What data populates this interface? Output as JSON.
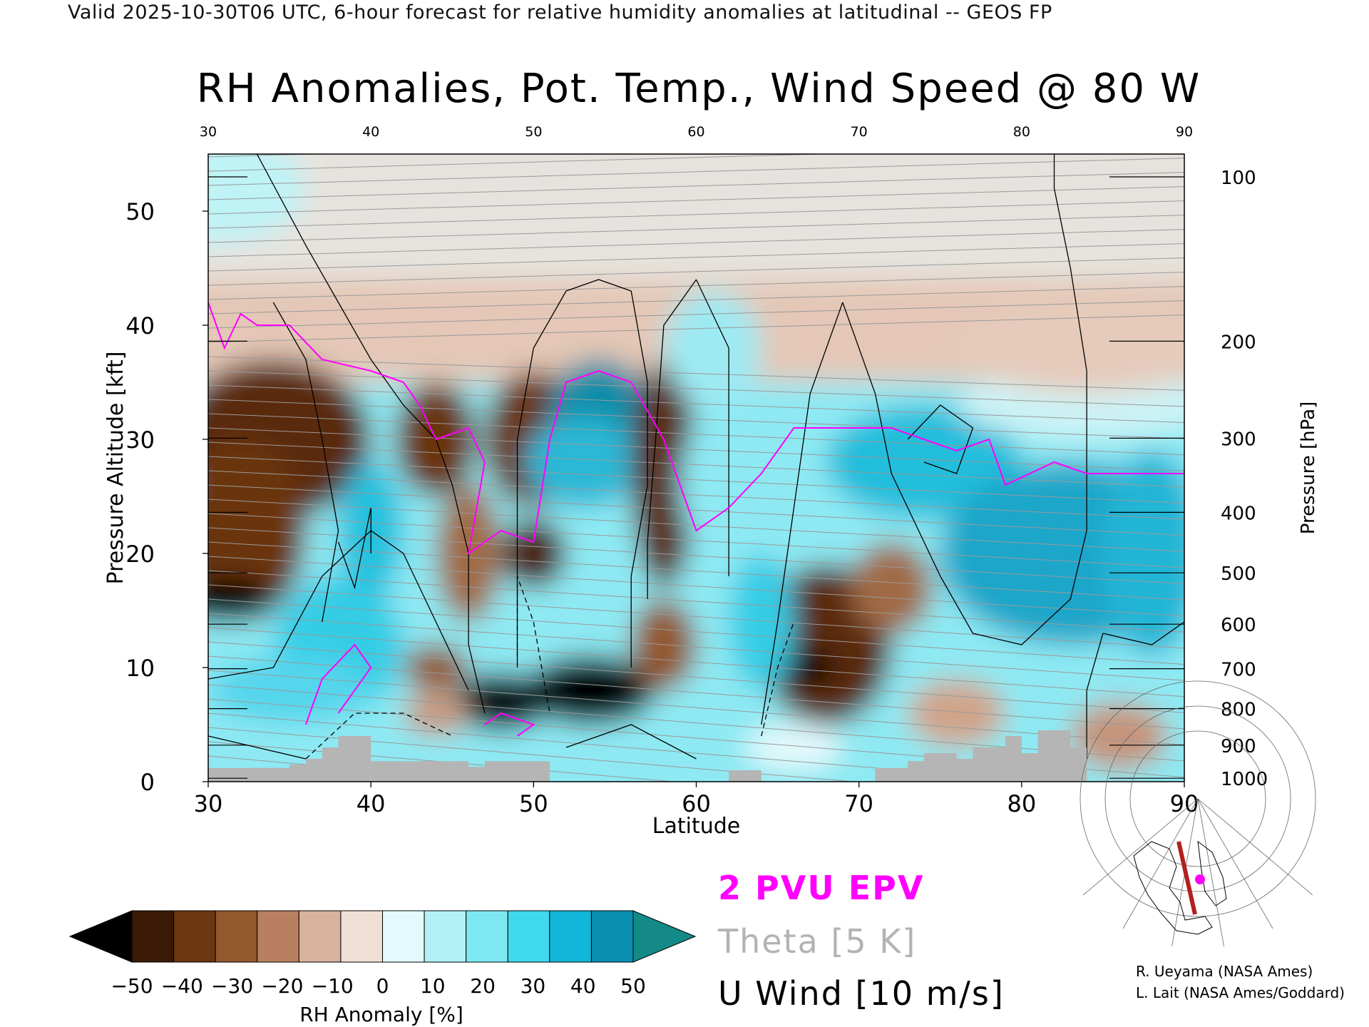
{
  "header": "Valid 2025-10-30T06 UTC, 6-hour forecast for relative humidity anomalies at latitudinal -- GEOS FP",
  "chart_data": {
    "type": "heatmap",
    "title": "RH Anomalies, Pot. Temp., Wind Speed @ 80 W",
    "xlabel": "Latitude",
    "ylabel": "Pressure Altitude [kft]",
    "y2label": "Pressure [hPa]",
    "xlim": [
      30,
      90
    ],
    "ylim": [
      0,
      55
    ],
    "x_ticks": [
      30,
      40,
      50,
      60,
      70,
      80,
      90
    ],
    "top_x_ticks": [
      30,
      40,
      50,
      60,
      70,
      80,
      90
    ],
    "y_ticks": [
      0,
      10,
      20,
      30,
      40,
      50
    ],
    "pressure_ticks": [
      {
        "p": 100,
        "alt": 53.0
      },
      {
        "p": 200,
        "alt": 38.6
      },
      {
        "p": 300,
        "alt": 30.1
      },
      {
        "p": 400,
        "alt": 23.6
      },
      {
        "p": 500,
        "alt": 18.3
      },
      {
        "p": 600,
        "alt": 13.8
      },
      {
        "p": 700,
        "alt": 9.9
      },
      {
        "p": 800,
        "alt": 6.4
      },
      {
        "p": 900,
        "alt": 3.2
      },
      {
        "p": 1000,
        "alt": 0.3
      }
    ],
    "colorbar": {
      "label": "RH Anomaly [%]",
      "ticks": [
        -50,
        -40,
        -30,
        -20,
        -10,
        0,
        10,
        20,
        30,
        40,
        50
      ],
      "colors": [
        "#000000",
        "#3a1a06",
        "#6b3610",
        "#92582e",
        "#b88060",
        "#d8b29c",
        "#f0dfd5",
        "#e2fafc",
        "#b2f1f7",
        "#7ee8f2",
        "#3fd8ec",
        "#12b6d8",
        "#0a8fb2",
        "#138a88"
      ]
    },
    "contour_sets": [
      {
        "name": "2 PVU EPV",
        "color": "#ff00ff"
      },
      {
        "name": "Theta [5 K]",
        "color": "#b3b3b3",
        "levels": [
          280,
          290,
          300,
          310,
          320,
          330,
          340,
          350,
          360,
          370,
          380,
          390,
          400,
          410,
          420
        ]
      },
      {
        "name": "U Wind [10 m/s]",
        "color": "#000000",
        "levels": [
          -10,
          0,
          10,
          20,
          30
        ]
      }
    ],
    "epv_2pvu": [
      [
        30,
        42
      ],
      [
        31,
        38
      ],
      [
        32,
        41
      ],
      [
        33,
        40
      ],
      [
        35,
        40
      ],
      [
        37,
        37
      ],
      [
        40,
        36
      ],
      [
        42,
        35
      ],
      [
        43,
        33
      ],
      [
        44,
        30
      ],
      [
        46,
        31
      ],
      [
        47,
        28
      ],
      [
        46,
        20
      ],
      [
        48,
        22
      ],
      [
        50,
        21
      ],
      [
        51,
        30
      ],
      [
        52,
        35
      ],
      [
        54,
        36
      ],
      [
        56,
        35
      ],
      [
        58,
        30
      ],
      [
        59,
        26
      ],
      [
        60,
        22
      ],
      [
        62,
        24
      ],
      [
        64,
        27
      ],
      [
        66,
        31
      ],
      [
        68,
        31
      ],
      [
        70,
        31
      ],
      [
        72,
        31
      ],
      [
        74,
        30
      ],
      [
        76,
        29
      ],
      [
        78,
        30
      ],
      [
        79,
        26
      ],
      [
        82,
        28
      ],
      [
        84,
        27
      ],
      [
        87,
        27
      ],
      [
        90,
        27
      ]
    ],
    "terrain": [
      [
        30,
        1.2
      ],
      [
        35,
        1.5
      ],
      [
        36,
        2
      ],
      [
        37,
        3
      ],
      [
        38,
        4
      ],
      [
        40,
        1.8
      ],
      [
        44,
        1.8
      ],
      [
        46,
        1.3
      ],
      [
        47,
        1.8
      ],
      [
        50,
        1.8
      ],
      [
        51,
        0
      ],
      [
        61,
        0
      ],
      [
        62,
        1
      ],
      [
        64,
        0
      ],
      [
        71,
        1.2
      ],
      [
        73,
        1.8
      ],
      [
        74,
        2.5
      ],
      [
        76,
        2
      ],
      [
        77,
        3
      ],
      [
        79,
        4
      ],
      [
        80,
        2.5
      ],
      [
        81,
        4.5
      ],
      [
        83,
        3
      ],
      [
        84,
        0
      ],
      [
        90,
        0
      ]
    ]
  },
  "colorbar_label": "RH Anomaly [%]",
  "legend": {
    "epv": "2 PVU EPV",
    "theta": "Theta [5 K]",
    "uwind": "U Wind [10 m/s]"
  },
  "credits": {
    "line1": "R. Ueyama (NASA Ames)",
    "line2": "L. Lait (NASA Ames/Goddard)"
  }
}
